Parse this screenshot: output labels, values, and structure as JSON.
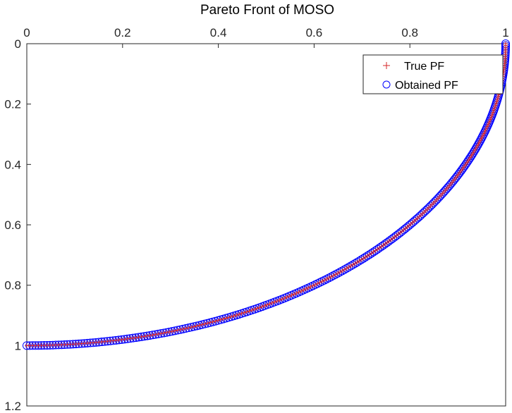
{
  "chart_data": {
    "type": "scatter",
    "title": "Pareto Front of MOSO",
    "xlabel": "",
    "ylabel": "",
    "x_axis_location": "top",
    "y_axis_direction": "reversed",
    "xlim": [
      0,
      1
    ],
    "ylim": [
      0,
      1.2
    ],
    "x_ticks": [
      "0",
      "0.2",
      "0.4",
      "0.6",
      "0.8",
      "1"
    ],
    "y_ticks": [
      "0",
      "0.2",
      "0.4",
      "0.6",
      "0.8",
      "1",
      "1.2"
    ],
    "grid": false,
    "legend_position": "top-right",
    "curve": "y = sqrt(1 - x^2)",
    "series": [
      {
        "name": "True PF",
        "marker": "plus",
        "color": "#d62728",
        "x": [
          0,
          0.05,
          0.1,
          0.15,
          0.2,
          0.25,
          0.3,
          0.35,
          0.4,
          0.45,
          0.5,
          0.55,
          0.6,
          0.65,
          0.7,
          0.75,
          0.8,
          0.85,
          0.9,
          0.95,
          0.98,
          1.0
        ],
        "y": [
          1.0,
          0.999,
          0.995,
          0.989,
          0.98,
          0.968,
          0.954,
          0.937,
          0.917,
          0.893,
          0.866,
          0.835,
          0.8,
          0.76,
          0.714,
          0.661,
          0.6,
          0.527,
          0.436,
          0.312,
          0.199,
          0.0
        ]
      },
      {
        "name": "Obtained PF",
        "marker": "circle",
        "color": "#0000ff",
        "x": [
          0,
          0.05,
          0.1,
          0.15,
          0.2,
          0.25,
          0.3,
          0.35,
          0.4,
          0.45,
          0.5,
          0.55,
          0.6,
          0.65,
          0.7,
          0.75,
          0.8,
          0.85,
          0.9,
          0.95,
          0.98,
          1.0
        ],
        "y": [
          1.0,
          0.999,
          0.995,
          0.989,
          0.98,
          0.968,
          0.954,
          0.937,
          0.917,
          0.893,
          0.866,
          0.835,
          0.8,
          0.76,
          0.714,
          0.661,
          0.6,
          0.527,
          0.436,
          0.312,
          0.199,
          0.0
        ]
      }
    ]
  }
}
